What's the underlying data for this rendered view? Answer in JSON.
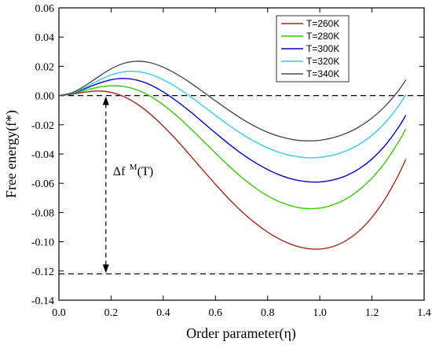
{
  "chart_data": {
    "type": "line",
    "title": "",
    "xlabel": "Order parameter(η)",
    "ylabel": "Free energy(f*)",
    "xlim": [
      0.0,
      1.4
    ],
    "ylim": [
      -0.14,
      0.06
    ],
    "x_ticks": [
      0.0,
      0.2,
      0.4,
      0.6,
      0.8,
      1.0,
      1.2,
      1.4
    ],
    "x_tick_labels": [
      "0.0",
      "0.2",
      "0.4",
      "0.6",
      "0.8",
      "1.0",
      "1.2",
      "1.4"
    ],
    "y_ticks": [
      -0.14,
      -0.12,
      -0.1,
      -0.08,
      -0.06,
      -0.04,
      -0.02,
      0.0,
      0.02,
      0.04,
      0.06
    ],
    "y_tick_labels": [
      "-0.14",
      "-0.12",
      "-0.10",
      "-0.08",
      "-0.06",
      "-0.04",
      "-0.02",
      "0.00",
      "0.02",
      "0.04",
      "0.06"
    ],
    "grid": false,
    "legend_position": "top-right",
    "series": [
      {
        "name": "T=260K",
        "color": "#a52a1a",
        "x": [
          0,
          0.05,
          0.1,
          0.15,
          0.2,
          0.25,
          0.3,
          0.35,
          0.4,
          0.45,
          0.5,
          0.55,
          0.6,
          0.65,
          0.7,
          0.75,
          0.8,
          0.85,
          0.9,
          0.95,
          1.0,
          1.05,
          1.1,
          1.15,
          1.2,
          1.25,
          1.3,
          1.33
        ],
        "y": [
          0,
          0.0009,
          0.0024,
          0.0031,
          0.0022,
          -0.0008,
          -0.0058,
          -0.0126,
          -0.0209,
          -0.0302,
          -0.0403,
          -0.0506,
          -0.0607,
          -0.0704,
          -0.0792,
          -0.0869,
          -0.0934,
          -0.0986,
          -0.1024,
          -0.1046,
          -0.105,
          -0.1033,
          -0.0993,
          -0.0927,
          -0.0833,
          -0.0708,
          -0.0549,
          -0.0435
        ]
      },
      {
        "name": "T=280K",
        "color": "#33cc00",
        "x": [
          0,
          0.05,
          0.1,
          0.15,
          0.2,
          0.25,
          0.3,
          0.35,
          0.4,
          0.45,
          0.5,
          0.55,
          0.6,
          0.65,
          0.7,
          0.75,
          0.8,
          0.85,
          0.9,
          0.95,
          1.0,
          1.05,
          1.1,
          1.15,
          1.2,
          1.25,
          1.3,
          1.33
        ],
        "y": [
          0,
          0.0012,
          0.0036,
          0.0057,
          0.0067,
          0.0062,
          0.0038,
          -0.0004,
          -0.0063,
          -0.0136,
          -0.0218,
          -0.0305,
          -0.0393,
          -0.0479,
          -0.0558,
          -0.0628,
          -0.0686,
          -0.073,
          -0.0759,
          -0.0773,
          -0.077,
          -0.0748,
          -0.0708,
          -0.0647,
          -0.0565,
          -0.0458,
          -0.0323,
          -0.0229
        ]
      },
      {
        "name": "T=300K",
        "color": "#0000cc",
        "x": [
          0,
          0.05,
          0.1,
          0.15,
          0.2,
          0.25,
          0.3,
          0.35,
          0.4,
          0.45,
          0.5,
          0.55,
          0.6,
          0.65,
          0.7,
          0.75,
          0.8,
          0.85,
          0.9,
          0.95,
          1.0,
          1.05,
          1.1,
          1.15,
          1.2,
          1.25,
          1.3,
          1.33
        ],
        "y": [
          0,
          0.0014,
          0.0047,
          0.0082,
          0.0108,
          0.0117,
          0.0105,
          0.0074,
          0.0025,
          -0.0036,
          -0.0105,
          -0.018,
          -0.0256,
          -0.0329,
          -0.0397,
          -0.0456,
          -0.0506,
          -0.0546,
          -0.0574,
          -0.0589,
          -0.0591,
          -0.0578,
          -0.0549,
          -0.0502,
          -0.0434,
          -0.0342,
          -0.0222,
          -0.0134
        ]
      },
      {
        "name": "T=320K",
        "color": "#33ccee",
        "x": [
          0,
          0.05,
          0.1,
          0.15,
          0.2,
          0.25,
          0.3,
          0.35,
          0.4,
          0.45,
          0.5,
          0.55,
          0.6,
          0.65,
          0.7,
          0.75,
          0.8,
          0.85,
          0.9,
          0.95,
          1.0,
          1.05,
          1.1,
          1.15,
          1.2,
          1.25,
          1.3,
          1.33
        ],
        "y": [
          0,
          0.0016,
          0.0055,
          0.0101,
          0.0141,
          0.0163,
          0.0164,
          0.0145,
          0.0108,
          0.0058,
          -0.0002,
          -0.0068,
          -0.0135,
          -0.0201,
          -0.0261,
          -0.0314,
          -0.0358,
          -0.0392,
          -0.0414,
          -0.0425,
          -0.0423,
          -0.0408,
          -0.0379,
          -0.0335,
          -0.0272,
          -0.0187,
          -0.0076,
          0.0007
        ]
      },
      {
        "name": "T=340K",
        "color": "#4d4d4d",
        "x": [
          0,
          0.05,
          0.1,
          0.15,
          0.2,
          0.25,
          0.3,
          0.35,
          0.4,
          0.45,
          0.5,
          0.55,
          0.6,
          0.65,
          0.7,
          0.75,
          0.8,
          0.85,
          0.9,
          0.95,
          1.0,
          1.05,
          1.1,
          1.15,
          1.2,
          1.25,
          1.3,
          1.33
        ],
        "y": [
          0,
          0.0019,
          0.0067,
          0.0127,
          0.0183,
          0.0221,
          0.0235,
          0.0225,
          0.0194,
          0.0148,
          0.0092,
          0.0029,
          -0.0036,
          -0.0099,
          -0.0158,
          -0.0209,
          -0.0251,
          -0.0282,
          -0.0302,
          -0.031,
          -0.0306,
          -0.0289,
          -0.0259,
          -0.0215,
          -0.0154,
          -0.0073,
          0.003,
          0.0108
        ]
      }
    ],
    "reference_lines": [
      {
        "orientation": "horizontal",
        "y": 0.0,
        "style": "dashed"
      },
      {
        "orientation": "horizontal",
        "y": -0.122,
        "style": "dashed"
      }
    ],
    "annotation": {
      "arrow": {
        "x": 0.18,
        "y_from": 0.0,
        "y_to": -0.122,
        "style": "dashed double-headed"
      },
      "text": "Δf",
      "superscript": "M",
      "suffix": "(T)",
      "x": 0.18,
      "y": -0.06
    }
  }
}
